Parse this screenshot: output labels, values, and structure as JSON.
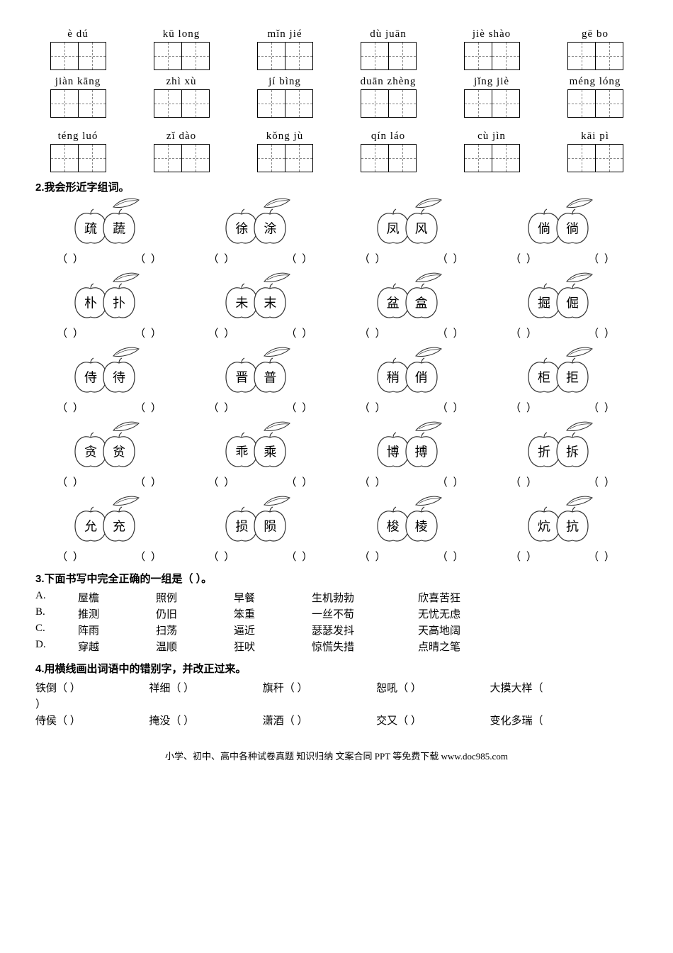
{
  "pinyin_rows": [
    [
      "è  dú",
      "kū  long",
      "mǐn jié",
      "dù  juān",
      "jiè  shào",
      "gē  bo"
    ],
    [
      "jiàn kāng",
      "zhì  xù",
      "jí  bìng",
      "duān zhèng",
      "jǐng jiè",
      "méng lóng"
    ],
    [
      "téng luó",
      "zǐ  dào",
      "kǒng  jù",
      "qín  láo",
      "cù  jìn",
      "kāi  pì"
    ]
  ],
  "q2": {
    "heading": "2.我会形近字组词。",
    "pairs": [
      [
        [
          "疏",
          "蔬"
        ],
        [
          "徐",
          "涂"
        ],
        [
          "凤",
          "风"
        ],
        [
          "倘",
          "徜"
        ]
      ],
      [
        [
          "朴",
          "扑"
        ],
        [
          "未",
          "末"
        ],
        [
          "盆",
          "盒"
        ],
        [
          "掘",
          "倔"
        ]
      ],
      [
        [
          "侍",
          "待"
        ],
        [
          "晋",
          "普"
        ],
        [
          "稍",
          "俏"
        ],
        [
          "柜",
          "拒"
        ]
      ],
      [
        [
          "贪",
          "贫"
        ],
        [
          "乖",
          "乘"
        ],
        [
          "博",
          "搏"
        ],
        [
          "折",
          "拆"
        ]
      ],
      [
        [
          "允",
          "充"
        ],
        [
          "损",
          "陨"
        ],
        [
          "梭",
          "棱"
        ],
        [
          "炕",
          "抗"
        ]
      ]
    ]
  },
  "q3": {
    "heading_full": "3.下面书写中完全正确的一组是（        ）。",
    "rows": [
      [
        "A.",
        "屋檐",
        "照例",
        "早餐",
        "生机勃勃",
        "欣喜苦狂"
      ],
      [
        "B.",
        "推测",
        "仍旧",
        "笨重",
        "一丝不荀",
        "无忧无虑"
      ],
      [
        "C.",
        "阵雨",
        "扫荡",
        "逼近",
        "瑟瑟发抖",
        "天高地阔"
      ],
      [
        "D.",
        "穿越",
        "温顺",
        "狂吠",
        "惊慌失措",
        "点晴之笔"
      ]
    ]
  },
  "q4": {
    "heading": "4.用横线画出词语中的错别字，并改正过来。",
    "lines": [
      [
        "铁倒（      ）",
        "祥细（        ）",
        "旗秆（        ）",
        "恕吼（   ）",
        "大摸大样（"
      ],
      [
        "）",
        "",
        "",
        "",
        ""
      ],
      [
        "侍侯（      ）",
        "掩没（        ）",
        "潇酒（        ）",
        "交又（       ）",
        "变化多瑞（"
      ]
    ]
  },
  "footer": "小学、初中、高中各种试卷真题 知识归纳 文案合同 PPT 等免费下载  www.doc985.com"
}
